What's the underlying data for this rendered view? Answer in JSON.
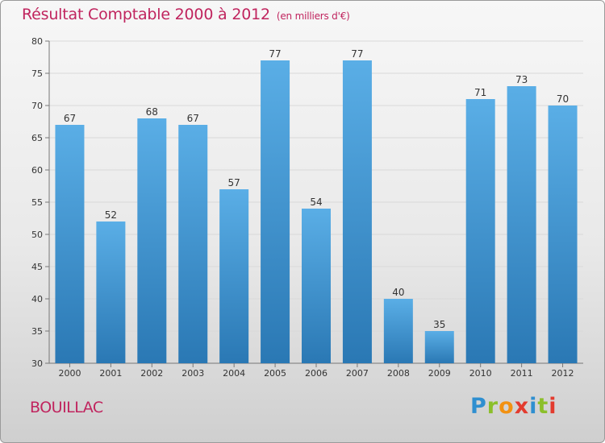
{
  "chart_data": {
    "type": "bar",
    "title": "Résultat Comptable 2000 à 2012",
    "subtitle": "(en milliers d'€)",
    "categories": [
      "2000",
      "2001",
      "2002",
      "2003",
      "2004",
      "2005",
      "2006",
      "2007",
      "2008",
      "2009",
      "2010",
      "2011",
      "2012"
    ],
    "values": [
      67,
      52,
      68,
      67,
      57,
      77,
      54,
      77,
      40,
      35,
      71,
      73,
      70
    ],
    "ylim": [
      30,
      80
    ],
    "yticks": [
      30,
      35,
      40,
      45,
      50,
      55,
      60,
      65,
      70,
      75,
      80
    ],
    "xlabel": "",
    "ylabel": "",
    "grid": true,
    "colors": {
      "bar_light": "#5aaee6",
      "bar_dark": "#2a78b4",
      "title": "#c0245e"
    }
  },
  "footer": {
    "place": "BOUILLAC",
    "logo_letters": [
      {
        "char": "P",
        "color": "#2f8fd0"
      },
      {
        "char": "r",
        "color": "#8bbf2a"
      },
      {
        "char": "o",
        "color": "#f29111"
      },
      {
        "char": "x",
        "color": "#e33b2e"
      },
      {
        "char": "i",
        "color": "#2f8fd0"
      },
      {
        "char": "t",
        "color": "#8bbf2a"
      },
      {
        "char": "i",
        "color": "#e33b2e"
      }
    ]
  }
}
